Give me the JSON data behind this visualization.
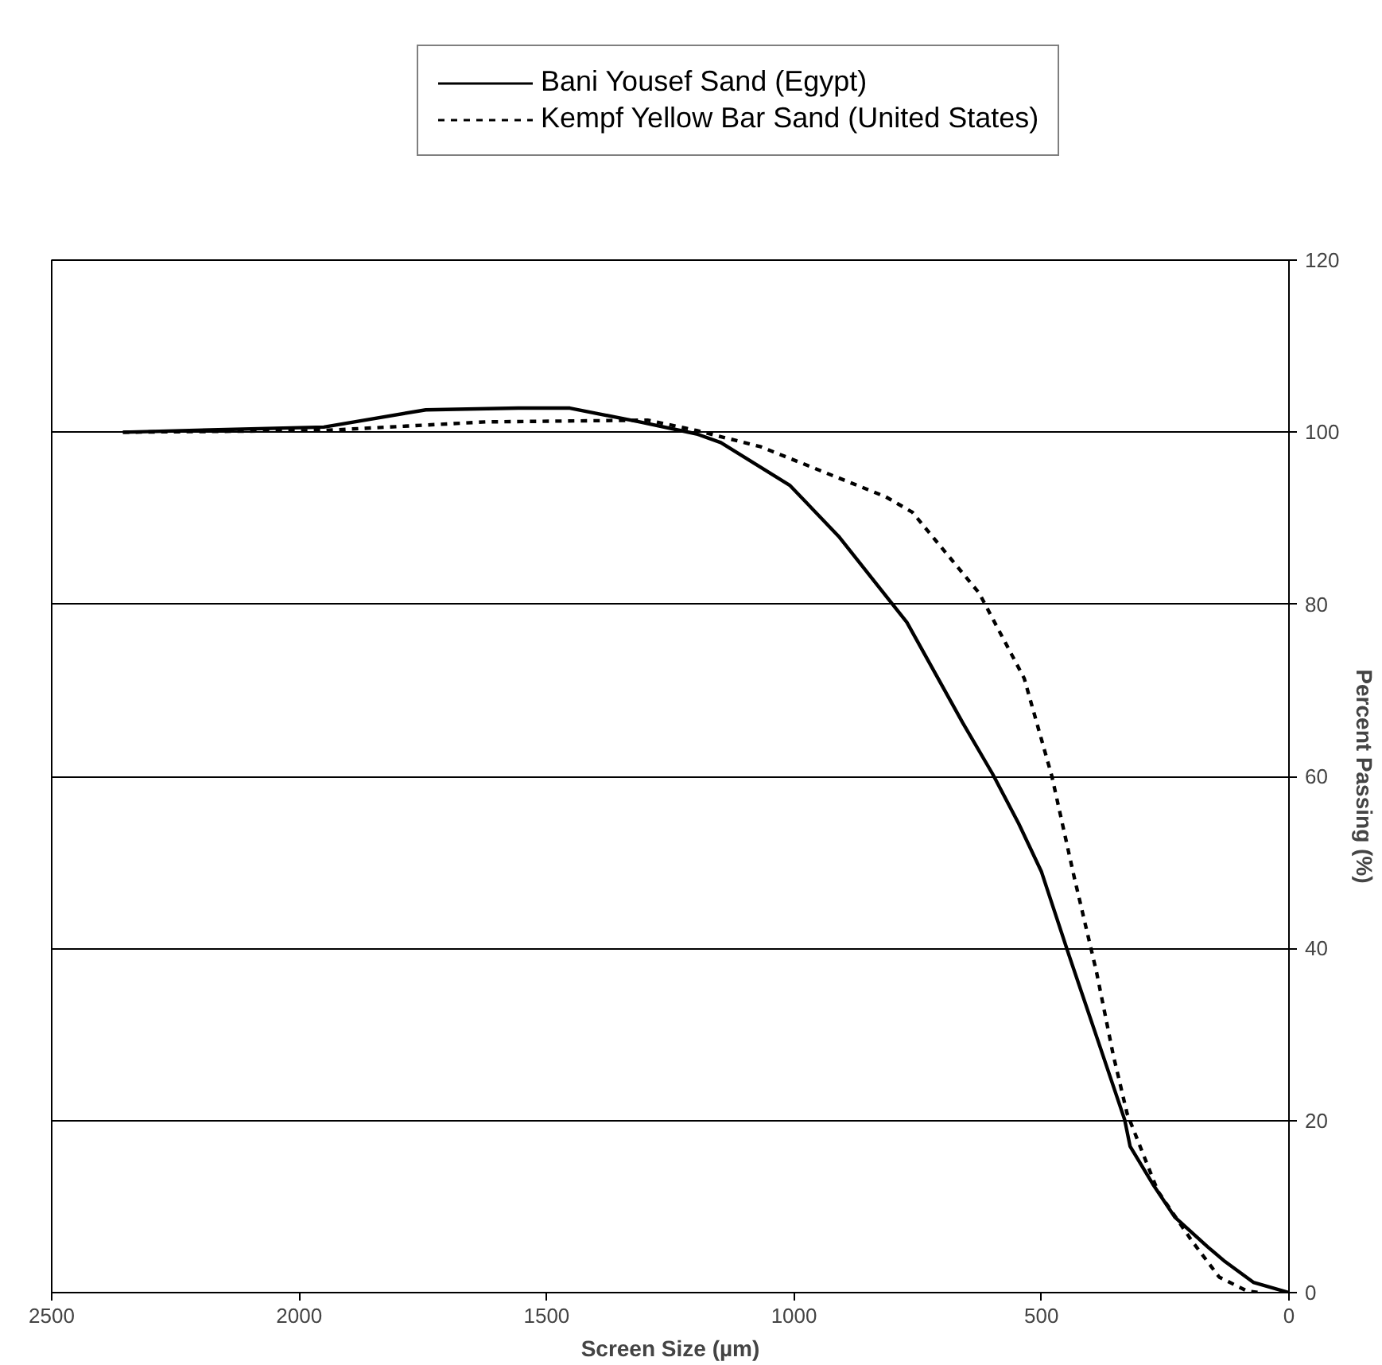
{
  "chart_data": {
    "type": "line",
    "xlabel": "Screen Size (µm)",
    "ylabel": "Percent Passing (%)",
    "xlim": [
      2500,
      0
    ],
    "xticks": [
      2500,
      2000,
      1500,
      1000,
      500,
      0
    ],
    "ylim": [
      0,
      120
    ],
    "yticks": [
      0,
      20,
      40,
      60,
      80,
      100,
      120
    ],
    "grid": "y",
    "legend": "top",
    "marker": "none",
    "series": [
      {
        "name": "Bani Yousef Sand (Egypt)",
        "color": "#000000",
        "line_style": "solid",
        "x": [
          2356,
          1950,
          1744,
          1557,
          1453,
          1312,
          1197,
          1148,
          1008,
          910,
          772,
          659,
          599,
          546,
          500,
          445,
          389,
          332,
          321,
          275,
          231,
          164,
          129,
          72,
          0
        ],
        "values": [
          100,
          100.6,
          102.6,
          102.8,
          102.8,
          101.2,
          99.8,
          98.8,
          93.8,
          87.9,
          77.9,
          66.2,
          60.3,
          54.5,
          48.9,
          39.3,
          29.8,
          20.1,
          17.0,
          12.6,
          8.8,
          5.3,
          3.6,
          1.2,
          0
        ]
      },
      {
        "name": "Kempf Yellow Bar Sand (United States)",
        "color": "#000000",
        "line_style": "dashed",
        "x": [
          2356,
          1950,
          1623,
          1296,
          1197,
          1067,
          815,
          761,
          626,
          535,
          479,
          434,
          389,
          355,
          327,
          265,
          196,
          141,
          85,
          60
        ],
        "values": [
          100,
          100.2,
          101.2,
          101.4,
          100.2,
          98.3,
          92.5,
          90.7,
          81.3,
          71.4,
          60.0,
          48.3,
          37.3,
          27.6,
          20.8,
          11.8,
          6.0,
          1.8,
          0.2,
          0
        ]
      }
    ]
  }
}
